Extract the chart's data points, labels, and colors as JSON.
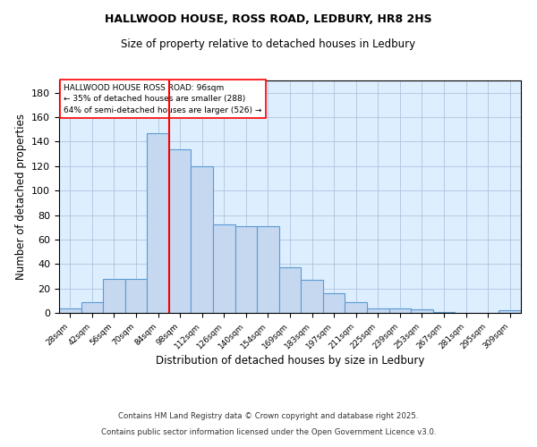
{
  "title1": "HALLWOOD HOUSE, ROSS ROAD, LEDBURY, HR8 2HS",
  "title2": "Size of property relative to detached houses in Ledbury",
  "xlabel": "Distribution of detached houses by size in Ledbury",
  "ylabel": "Number of detached properties",
  "bar_labels": [
    "28sqm",
    "42sqm",
    "56sqm",
    "70sqm",
    "84sqm",
    "98sqm",
    "112sqm",
    "126sqm",
    "140sqm",
    "154sqm",
    "169sqm",
    "183sqm",
    "197sqm",
    "211sqm",
    "225sqm",
    "239sqm",
    "253sqm",
    "267sqm",
    "281sqm",
    "295sqm",
    "309sqm"
  ],
  "bar_values": [
    4,
    9,
    28,
    28,
    147,
    134,
    120,
    72,
    71,
    71,
    37,
    27,
    16,
    9,
    4,
    4,
    3,
    1,
    0,
    0,
    2
  ],
  "bar_color": "#c5d8f0",
  "bar_edge_color": "#5b9bd5",
  "annotation_title": "HALLWOOD HOUSE ROSS ROAD: 96sqm",
  "annotation_line1": "← 35% of detached houses are smaller (288)",
  "annotation_line2": "64% of semi-detached houses are larger (526) →",
  "vline_color": "red",
  "vline_pos": 4.5,
  "ylim": [
    0,
    190
  ],
  "yticks": [
    0,
    20,
    40,
    60,
    80,
    100,
    120,
    140,
    160,
    180
  ],
  "grid_color": "#b0c4de",
  "bg_color": "#ddeeff",
  "footnote1": "Contains HM Land Registry data © Crown copyright and database right 2025.",
  "footnote2": "Contains public sector information licensed under the Open Government Licence v3.0."
}
